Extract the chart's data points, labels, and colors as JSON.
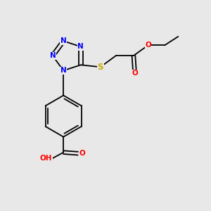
{
  "bg_color": "#e8e8e8",
  "atom_colors": {
    "N": "#0000ff",
    "O": "#ff0000",
    "S": "#ccaa00",
    "C": "#000000",
    "H": "#000000"
  },
  "bond_color": "#000000",
  "font_size": 7.5,
  "fig_size": [
    3.0,
    3.0
  ],
  "dpi": 100
}
